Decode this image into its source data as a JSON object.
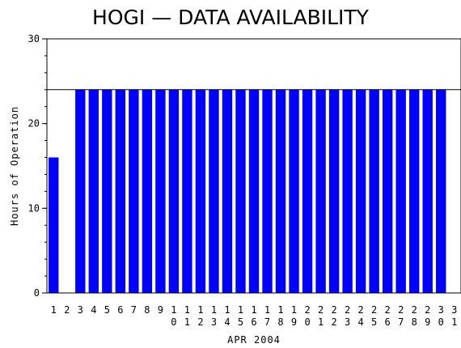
{
  "chart_data": {
    "type": "bar",
    "title": "HOGI — DATA AVAILABILITY",
    "xlabel": "APR 2004",
    "ylabel": "Hours of Operation",
    "ylim": [
      0,
      30
    ],
    "yticks": [
      0,
      10,
      20,
      30
    ],
    "y_minor_step": 2,
    "reference_line": 24,
    "categories": [
      "1",
      "2",
      "3",
      "4",
      "5",
      "6",
      "7",
      "8",
      "9",
      "10",
      "11",
      "12",
      "13",
      "14",
      "15",
      "16",
      "17",
      "18",
      "19",
      "20",
      "21",
      "22",
      "23",
      "24",
      "25",
      "26",
      "27",
      "28",
      "29",
      "30",
      "31"
    ],
    "values": [
      16,
      0,
      24,
      24,
      24,
      24,
      24,
      24,
      24,
      24,
      24,
      24,
      24,
      24,
      24,
      24,
      24,
      24,
      24,
      24,
      24,
      24,
      24,
      24,
      24,
      24,
      24,
      24,
      24,
      24,
      null
    ],
    "bar_color": "#0000ff",
    "grid": false
  }
}
